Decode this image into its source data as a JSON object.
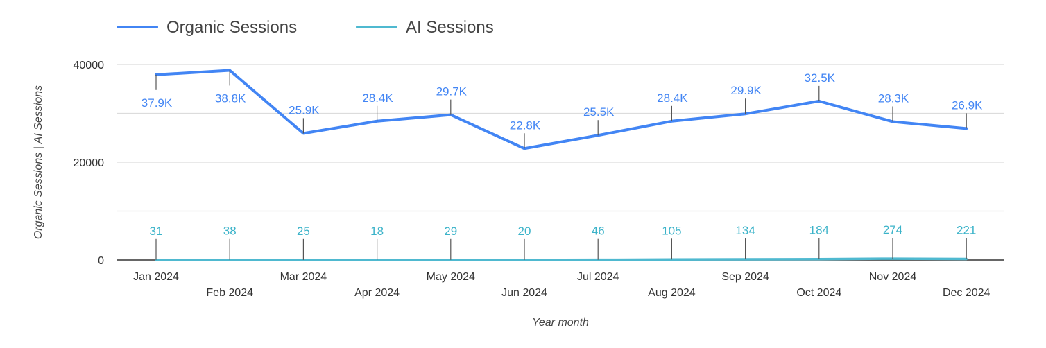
{
  "chart_data": {
    "type": "line",
    "categories": [
      "Jan 2024",
      "Feb 2024",
      "Mar 2024",
      "Apr 2024",
      "May 2024",
      "Jun 2024",
      "Jul 2024",
      "Aug 2024",
      "Sep 2024",
      "Oct 2024",
      "Nov 2024",
      "Dec 2024"
    ],
    "series": [
      {
        "name": "Organic Sessions",
        "color": "#4285f4",
        "label_color": "#4285f4",
        "values": [
          37900,
          38800,
          25900,
          28400,
          29700,
          22800,
          25500,
          28400,
          29900,
          32500,
          28300,
          26900
        ],
        "data_labels": [
          "37.9K",
          "38.8K",
          "25.9K",
          "28.4K",
          "29.7K",
          "22.8K",
          "25.5K",
          "28.4K",
          "29.9K",
          "32.5K",
          "28.3K",
          "26.9K"
        ]
      },
      {
        "name": "AI Sessions",
        "color": "#4fb9d0",
        "label_color": "#3bb3c9",
        "values": [
          31,
          38,
          25,
          18,
          29,
          20,
          46,
          105,
          134,
          184,
          274,
          221
        ],
        "data_labels": [
          "31",
          "38",
          "25",
          "18",
          "29",
          "20",
          "46",
          "105",
          "134",
          "184",
          "274",
          "221"
        ]
      }
    ],
    "xlabel": "Year month",
    "ylabel": "Organic Sessions | AI Sessions",
    "ylim": [
      0,
      40000
    ],
    "y_ticks": [
      "0",
      "20000",
      "40000"
    ],
    "grid": true,
    "legend": "top-left"
  }
}
